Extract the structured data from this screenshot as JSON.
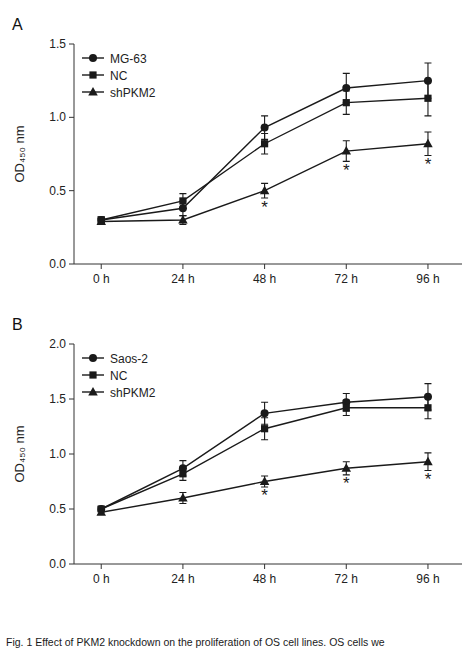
{
  "chart_data": [
    {
      "type": "line",
      "title": "A",
      "y_label": "OD₄₅₀ nm",
      "x": [
        0,
        24,
        48,
        72,
        96
      ],
      "xlim": [
        -8,
        106
      ],
      "xticks": [
        {
          "value": 0,
          "label": "0 h"
        },
        {
          "value": 24,
          "label": "24 h"
        },
        {
          "value": 48,
          "label": "48 h"
        },
        {
          "value": 72,
          "label": "72 h"
        },
        {
          "value": 96,
          "label": "96 h"
        }
      ],
      "ylim": [
        0.0,
        1.5
      ],
      "yticks": [
        {
          "value": 0.0,
          "label": "0.0"
        },
        0.5,
        {
          "value": 1.0,
          "label": "1.0"
        },
        1.5
      ],
      "grid": false,
      "legend": "upper left",
      "series": [
        {
          "name": "MG-63",
          "marker": "circle",
          "color": "#1a1a1a",
          "values": [
            0.3,
            0.38,
            0.93,
            1.2,
            1.25
          ],
          "yerr": [
            0.02,
            0.05,
            0.08,
            0.1,
            0.12
          ]
        },
        {
          "name": "NC",
          "marker": "square",
          "color": "#1a1a1a",
          "values": [
            0.3,
            0.43,
            0.82,
            1.1,
            1.13
          ],
          "yerr": [
            0.02,
            0.05,
            0.07,
            0.08,
            0.12
          ]
        },
        {
          "name": "shPKM2",
          "marker": "triangle",
          "color": "#1a1a1a",
          "values": [
            0.29,
            0.3,
            0.5,
            0.77,
            0.82
          ],
          "yerr": [
            0.02,
            0.03,
            0.05,
            0.07,
            0.08
          ]
        }
      ],
      "annotations": [
        {
          "text": "*",
          "x": 48,
          "y": 0.43,
          "color": "#1a1a1a"
        },
        {
          "text": "*",
          "x": 72,
          "y": 0.68,
          "color": "#1a1a1a"
        },
        {
          "text": "*",
          "x": 96,
          "y": 0.72,
          "color": "#1a1a1a"
        }
      ]
    },
    {
      "type": "line",
      "title": "B",
      "y_label": "OD₄₅₀ nm",
      "x": [
        0,
        24,
        48,
        72,
        96
      ],
      "xlim": [
        -8,
        106
      ],
      "xticks": [
        {
          "value": 0,
          "label": "0 h"
        },
        {
          "value": 24,
          "label": "24 h"
        },
        {
          "value": 48,
          "label": "48 h"
        },
        {
          "value": 72,
          "label": "72 h"
        },
        {
          "value": 96,
          "label": "96 h"
        }
      ],
      "ylim": [
        0.0,
        2.0
      ],
      "yticks": [
        {
          "value": 0.0,
          "label": "0.0"
        },
        0.5,
        {
          "value": 1.0,
          "label": "1.0"
        },
        1.5,
        {
          "value": 2.0,
          "label": "2.0"
        }
      ],
      "grid": false,
      "legend": "upper left",
      "series": [
        {
          "name": "Saos-2",
          "marker": "circle",
          "color": "#1a1a1a",
          "values": [
            0.5,
            0.87,
            1.37,
            1.47,
            1.52
          ],
          "yerr": [
            0.02,
            0.07,
            0.1,
            0.08,
            0.12
          ]
        },
        {
          "name": "NC",
          "marker": "square",
          "color": "#1a1a1a",
          "values": [
            0.5,
            0.82,
            1.23,
            1.42,
            1.42
          ],
          "yerr": [
            0.02,
            0.06,
            0.1,
            0.07,
            0.1
          ]
        },
        {
          "name": "shPKM2",
          "marker": "triangle",
          "color": "#1a1a1a",
          "values": [
            0.47,
            0.6,
            0.75,
            0.87,
            0.93
          ],
          "yerr": [
            0.02,
            0.05,
            0.05,
            0.06,
            0.08
          ]
        }
      ],
      "annotations": [
        {
          "text": "*",
          "x": 48,
          "y": 0.68,
          "color": "#1a1a1a"
        },
        {
          "text": "*",
          "x": 72,
          "y": 0.79,
          "color": "#1a1a1a"
        },
        {
          "text": "*",
          "x": 96,
          "y": 0.83,
          "color": "#1a1a1a"
        }
      ],
      "caption": "Fig. 1  Effect of PKM2 knockdown on the proliferation of OS cell lines. OS cells we"
    }
  ]
}
